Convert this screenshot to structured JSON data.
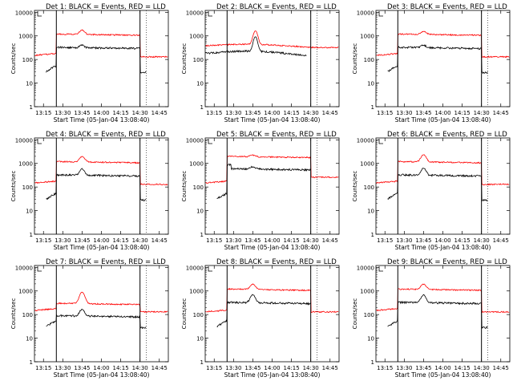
{
  "colors": {
    "events": "#000000",
    "lld": "#ff0000",
    "axes": "#000000",
    "background": "#ffffff"
  },
  "chart_data": [
    {
      "type": "line",
      "title": "Det 1: BLACK = Events, RED = LLD",
      "xlabel": "Start Time (05-Jan-04 13:08:40)",
      "ylabel": "Counts/sec",
      "yscale": "log",
      "ylim": [
        1,
        12000
      ],
      "xlim": [
        "13:08",
        "14:52"
      ],
      "x_ticks": [
        "13:15",
        "13:30",
        "13:45",
        "14:00",
        "14:15",
        "14:30",
        "14:45"
      ],
      "y_ticks": [
        "1",
        "10",
        "100",
        "1000",
        "10000"
      ],
      "legend": "none",
      "grid": false,
      "mode": "std",
      "series": [
        {
          "name": "LLD",
          "color": "#ff0000"
        },
        {
          "name": "Events",
          "color": "#000000"
        }
      ],
      "bursts": [
        {
          "time": "13:45",
          "lld_peak": 1800,
          "events_peak": 420
        }
      ],
      "markers": [
        "13:25",
        "14:30",
        "14:35"
      ]
    },
    {
      "type": "line",
      "title": "Det 2: BLACK = Events, RED = LLD",
      "xlabel": "Start Time (05-Jan-04 13:08:40)",
      "ylabel": "Counts/sec",
      "yscale": "log",
      "ylim": [
        1,
        12000
      ],
      "xlim": [
        "13:08",
        "14:52"
      ],
      "x_ticks": [
        "13:15",
        "13:30",
        "13:45",
        "14:00",
        "14:15",
        "14:30",
        "14:45"
      ],
      "y_ticks": [
        "1",
        "10",
        "100",
        "1000",
        "10000"
      ],
      "legend": "none",
      "grid": false,
      "mode": "cont",
      "series": [
        {
          "name": "LLD",
          "color": "#ff0000"
        },
        {
          "name": "Events",
          "color": "#000000"
        }
      ],
      "bursts": [
        {
          "time": "13:47",
          "lld_peak": 1500,
          "events_peak": 900
        }
      ],
      "markers": [
        "13:25",
        "14:30",
        "14:35"
      ]
    },
    {
      "type": "line",
      "title": "Det 3: BLACK = Events, RED = LLD",
      "xlabel": "Start Time (05-Jan-04 13:08:40)",
      "ylabel": "Counts/sec",
      "yscale": "log",
      "ylim": [
        1,
        12000
      ],
      "xlim": [
        "13:08",
        "14:52"
      ],
      "x_ticks": [
        "13:15",
        "13:30",
        "13:45",
        "14:00",
        "14:15",
        "14:30",
        "14:45"
      ],
      "y_ticks": [
        "1",
        "10",
        "100",
        "1000",
        "10000"
      ],
      "legend": "none",
      "grid": false,
      "mode": "std",
      "series": [
        {
          "name": "LLD",
          "color": "#ff0000"
        },
        {
          "name": "Events",
          "color": "#000000"
        }
      ],
      "bursts": [
        {
          "time": "13:45",
          "lld_peak": 1600,
          "events_peak": 420
        }
      ],
      "markers": [
        "13:25",
        "14:30",
        "14:35"
      ]
    },
    {
      "type": "line",
      "title": "Det 4: BLACK = Events, RED = LLD",
      "xlabel": "Start Time (05-Jan-04 13:08:40)",
      "ylabel": "Counts/sec",
      "yscale": "log",
      "ylim": [
        1,
        12000
      ],
      "xlim": [
        "13:08",
        "14:52"
      ],
      "x_ticks": [
        "13:15",
        "13:30",
        "13:45",
        "14:00",
        "14:15",
        "14:30",
        "14:45"
      ],
      "y_ticks": [
        "1",
        "10",
        "100",
        "1000",
        "10000"
      ],
      "legend": "none",
      "grid": false,
      "mode": "std",
      "series": [
        {
          "name": "LLD",
          "color": "#ff0000"
        },
        {
          "name": "Events",
          "color": "#000000"
        }
      ],
      "bursts": [
        {
          "time": "13:45",
          "lld_peak": 2000,
          "events_peak": 600
        }
      ],
      "markers": [
        "13:25",
        "14:30",
        "14:35"
      ]
    },
    {
      "type": "line",
      "title": "Det 5: BLACK = Events, RED = LLD",
      "xlabel": "Start Time (05-Jan-04 13:08:40)",
      "ylabel": "Counts/sec",
      "yscale": "log",
      "ylim": [
        1,
        12000
      ],
      "xlim": [
        "13:08",
        "14:52"
      ],
      "x_ticks": [
        "13:15",
        "13:30",
        "13:45",
        "14:00",
        "14:15",
        "14:30",
        "14:45"
      ],
      "y_ticks": [
        "1",
        "10",
        "100",
        "1000",
        "10000"
      ],
      "legend": "none",
      "grid": false,
      "mode": "det5",
      "series": [
        {
          "name": "LLD",
          "color": "#ff0000"
        },
        {
          "name": "Events",
          "color": "#000000"
        }
      ],
      "bursts": [
        {
          "time": "13:45",
          "lld_peak": 2300,
          "events_peak": 750
        }
      ],
      "markers": [
        "13:25",
        "14:30",
        "14:35"
      ]
    },
    {
      "type": "line",
      "title": "Det 6: BLACK = Events, RED = LLD",
      "xlabel": "Start Time (05-Jan-04 13:08:40)",
      "ylabel": "Counts/sec",
      "yscale": "log",
      "ylim": [
        1,
        12000
      ],
      "xlim": [
        "13:08",
        "14:52"
      ],
      "x_ticks": [
        "13:15",
        "13:30",
        "13:45",
        "14:00",
        "14:15",
        "14:30",
        "14:45"
      ],
      "y_ticks": [
        "1",
        "10",
        "100",
        "1000",
        "10000"
      ],
      "legend": "none",
      "grid": false,
      "mode": "std",
      "series": [
        {
          "name": "LLD",
          "color": "#ff0000"
        },
        {
          "name": "Events",
          "color": "#000000"
        }
      ],
      "bursts": [
        {
          "time": "13:45",
          "lld_peak": 2400,
          "events_peak": 650
        }
      ],
      "markers": [
        "13:25",
        "14:30",
        "14:35"
      ]
    },
    {
      "type": "line",
      "title": "Det 7: BLACK = Events, RED = LLD",
      "xlabel": "Start Time (05-Jan-04 13:08:40)",
      "ylabel": "Counts/sec",
      "yscale": "log",
      "ylim": [
        1,
        12000
      ],
      "xlim": [
        "13:08",
        "14:52"
      ],
      "x_ticks": [
        "13:15",
        "13:30",
        "13:45",
        "14:00",
        "14:15",
        "14:30",
        "14:45"
      ],
      "y_ticks": [
        "1",
        "10",
        "100",
        "1000",
        "10000"
      ],
      "legend": "none",
      "grid": false,
      "mode": "std",
      "series": [
        {
          "name": "LLD",
          "color": "#ff0000"
        },
        {
          "name": "Events",
          "color": "#000000"
        }
      ],
      "bursts": [
        {
          "time": "13:45",
          "lld_peak": 900,
          "events_peak": 170
        }
      ],
      "markers": [
        "13:25",
        "14:30",
        "14:35"
      ]
    },
    {
      "type": "line",
      "title": "Det 8: BLACK = Events, RED = LLD",
      "xlabel": "Start Time (05-Jan-04 13:08:40)",
      "ylabel": "Counts/sec",
      "yscale": "log",
      "ylim": [
        1,
        12000
      ],
      "xlim": [
        "13:08",
        "14:52"
      ],
      "x_ticks": [
        "13:15",
        "13:30",
        "13:45",
        "14:00",
        "14:15",
        "14:30",
        "14:45"
      ],
      "y_ticks": [
        "1",
        "10",
        "100",
        "1000",
        "10000"
      ],
      "legend": "none",
      "grid": false,
      "mode": "det8",
      "series": [
        {
          "name": "LLD",
          "color": "#ff0000"
        },
        {
          "name": "Events",
          "color": "#000000"
        }
      ],
      "bursts": [
        {
          "time": "13:45",
          "lld_peak": 2000,
          "events_peak": 700
        }
      ],
      "markers": [
        "13:25",
        "14:30",
        "14:35"
      ]
    },
    {
      "type": "line",
      "title": "Det 9: BLACK = Events, RED = LLD",
      "xlabel": "Start Time (05-Jan-04 13:08:40)",
      "ylabel": "Counts/sec",
      "yscale": "log",
      "ylim": [
        1,
        12000
      ],
      "xlim": [
        "13:08",
        "14:52"
      ],
      "x_ticks": [
        "13:15",
        "13:30",
        "13:45",
        "14:00",
        "14:15",
        "14:30",
        "14:45"
      ],
      "y_ticks": [
        "1",
        "10",
        "100",
        "1000",
        "10000"
      ],
      "legend": "none",
      "grid": false,
      "mode": "std",
      "series": [
        {
          "name": "LLD",
          "color": "#ff0000"
        },
        {
          "name": "Events",
          "color": "#000000"
        }
      ],
      "bursts": [
        {
          "time": "13:45",
          "lld_peak": 2000,
          "events_peak": 700
        }
      ],
      "markers": [
        "13:25",
        "14:30",
        "14:35"
      ]
    }
  ]
}
